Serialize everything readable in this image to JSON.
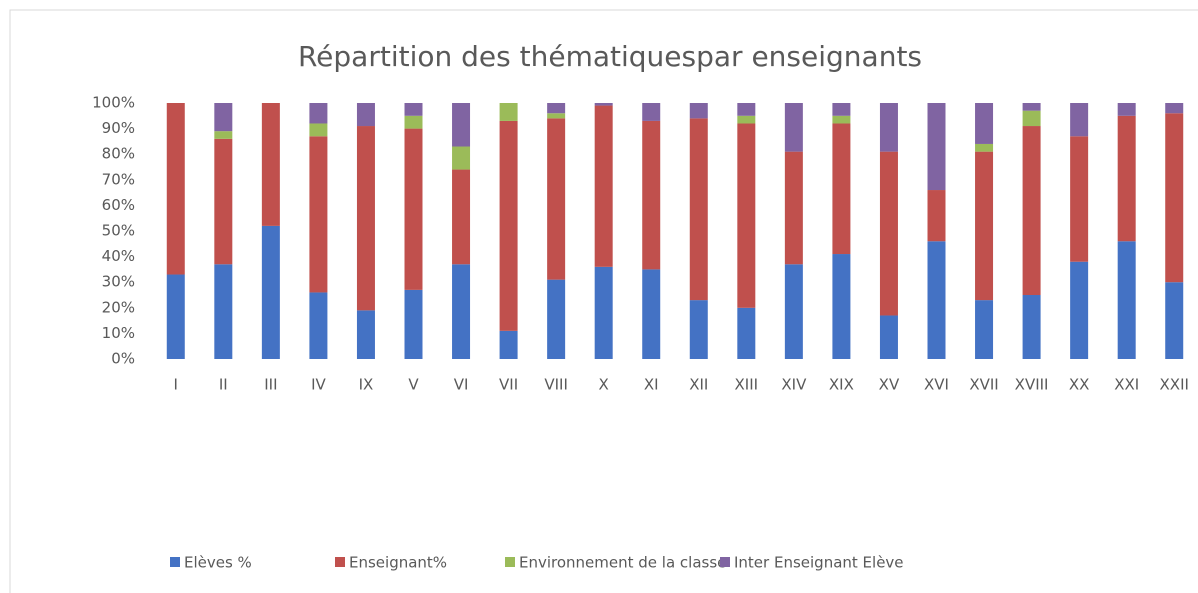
{
  "chart_data": {
    "type": "stacked_bar",
    "title": "Répartition des thématiquespar enseignants",
    "categories": [
      "I",
      "II",
      "III",
      "IV",
      "IX",
      "V",
      "VI",
      "VII",
      "VIII",
      "X",
      "XI",
      "XII",
      "XIII",
      "XIV",
      "XIX",
      "XV",
      "XVI",
      "XVII",
      "XVIII",
      "XX",
      "XXI",
      "XXII"
    ],
    "series": [
      {
        "name": "Elèves %",
        "color": "#4472c4",
        "values": [
          33,
          37,
          52,
          26,
          19,
          27,
          37,
          11,
          31,
          36,
          35,
          23,
          20,
          37,
          41,
          17,
          46,
          23,
          25,
          38,
          46,
          30
        ]
      },
      {
        "name": "Enseignant%",
        "color": "#c0504d",
        "values": [
          67,
          49,
          48,
          61,
          72,
          63,
          37,
          82,
          63,
          63,
          58,
          71,
          72,
          44,
          51,
          64,
          20,
          58,
          66,
          49,
          49,
          66
        ]
      },
      {
        "name": "Environnement de la classe",
        "color": "#9bbb59",
        "values": [
          0,
          3,
          0,
          5,
          0,
          5,
          9,
          7,
          2,
          0,
          0,
          0,
          3,
          0,
          3,
          0,
          0,
          3,
          6,
          0,
          0,
          0
        ]
      },
      {
        "name": "Inter Enseignant Elève",
        "color": "#8064a2",
        "values": [
          0,
          11,
          0,
          8,
          9,
          5,
          17,
          0,
          4,
          1,
          7,
          6,
          5,
          19,
          5,
          19,
          34,
          16,
          3,
          13,
          5,
          4
        ]
      }
    ],
    "ylim": [
      0,
      100
    ],
    "yticks": [
      {
        "value": 0,
        "label": "0%"
      },
      {
        "value": 10,
        "label": "10%"
      },
      {
        "value": 20,
        "label": "20%"
      },
      {
        "value": 30,
        "label": "30%"
      },
      {
        "value": 40,
        "label": "40%"
      },
      {
        "value": 50,
        "label": "50%"
      },
      {
        "value": 60,
        "label": "60%"
      },
      {
        "value": 70,
        "label": "70%"
      },
      {
        "value": 80,
        "label": "80%"
      },
      {
        "value": 90,
        "label": "90%"
      },
      {
        "value": 100,
        "label": "100%"
      }
    ],
    "grid": false,
    "legend": "bottom"
  }
}
